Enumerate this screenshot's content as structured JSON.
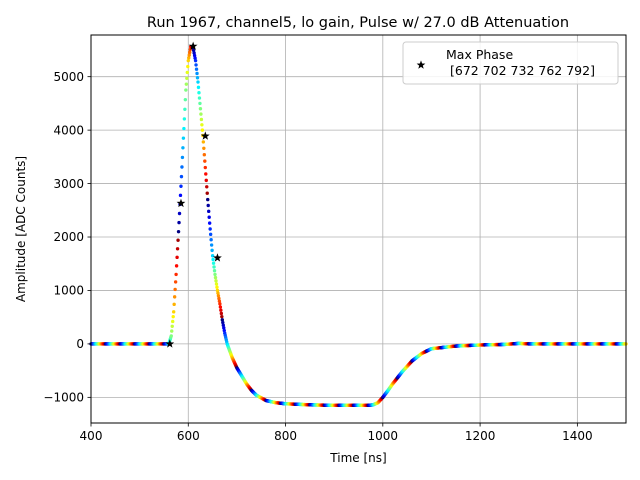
{
  "chart_data": {
    "type": "scatter",
    "title": "Run 1967, channel5, lo gain, Pulse w/ 27.0 dB Attenuation",
    "xlabel": "Time [ns]",
    "ylabel": "Amplitude [ADC Counts]",
    "xlim": [
      400,
      1500
    ],
    "ylim": [
      -1480,
      5780
    ],
    "xticks": [
      400,
      600,
      800,
      1000,
      1200,
      1400
    ],
    "yticks": [
      -1000,
      0,
      1000,
      2000,
      3000,
      4000,
      5000
    ],
    "xtick_labels": [
      "400",
      "600",
      "800",
      "1000",
      "1200",
      "1400"
    ],
    "ytick_labels": [
      "−1000",
      "0",
      "1000",
      "2000",
      "3000",
      "4000",
      "5000"
    ],
    "grid": true,
    "legend": {
      "placement": "top-right",
      "label": "Max Phase",
      "values_text": "[672 702 732 762 792]"
    },
    "waveform": {
      "colormap": "jet",
      "x": [
        400,
        540,
        560,
        565,
        570,
        575,
        580,
        585,
        590,
        595,
        600,
        605,
        610,
        615,
        620,
        625,
        630,
        635,
        640,
        645,
        650,
        655,
        660,
        665,
        670,
        675,
        680,
        690,
        700,
        710,
        720,
        730,
        740,
        760,
        780,
        800,
        850,
        900,
        950,
        970,
        980,
        990,
        1000,
        1010,
        1020,
        1040,
        1060,
        1080,
        1100,
        1150,
        1200,
        1250,
        1280,
        1300,
        1400,
        1500
      ],
      "y": [
        0,
        0,
        0,
        150,
        600,
        1300,
        2100,
        2950,
        3850,
        4750,
        5300,
        5560,
        5540,
        5300,
        4900,
        4400,
        3900,
        3300,
        2700,
        2150,
        1650,
        1300,
        1000,
        750,
        450,
        200,
        0,
        -250,
        -450,
        -600,
        -750,
        -870,
        -960,
        -1060,
        -1100,
        -1120,
        -1140,
        -1150,
        -1150,
        -1150,
        -1140,
        -1100,
        -1000,
        -880,
        -750,
        -520,
        -320,
        -180,
        -90,
        -40,
        -20,
        -10,
        10,
        0,
        0,
        0
      ]
    },
    "markers": {
      "name": "Max Phase",
      "x": [
        562,
        585,
        610,
        635,
        660
      ],
      "y": [
        0,
        2630,
        5570,
        3890,
        1610
      ]
    }
  }
}
